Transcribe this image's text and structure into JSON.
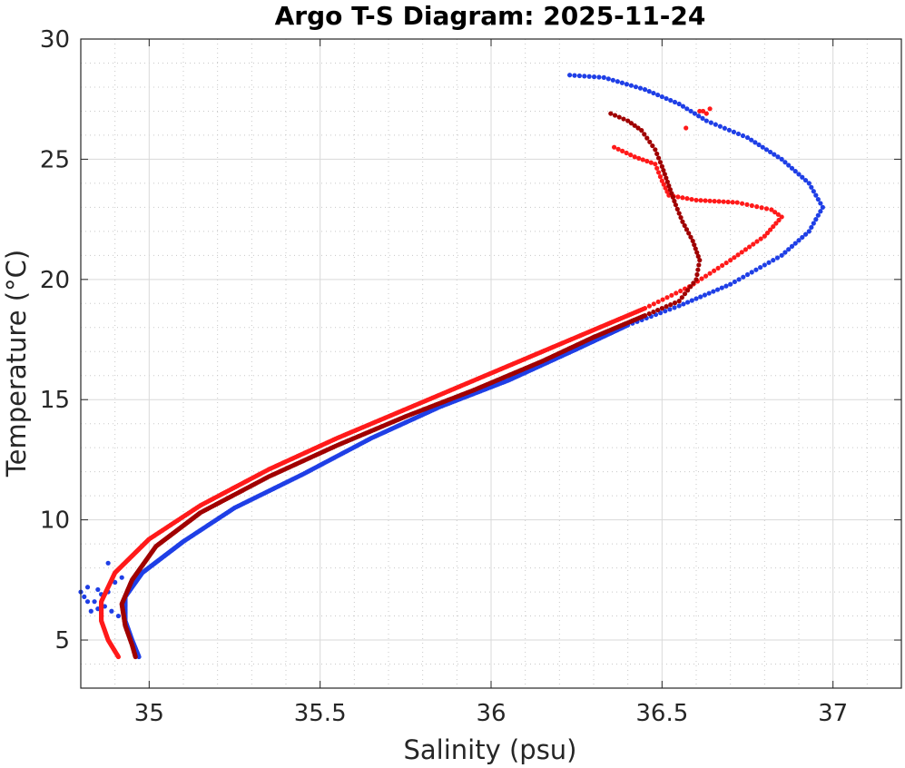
{
  "chart_data": {
    "type": "scatter",
    "title": "Argo T-S Diagram: 2025-11-24",
    "xlabel": "Salinity (psu)",
    "ylabel": "Temperature (°C)",
    "xlim": [
      34.8,
      37.2
    ],
    "ylim": [
      3,
      30
    ],
    "xticks": [
      35,
      35.5,
      36,
      36.5,
      37
    ],
    "xtick_labels": [
      "35",
      "35.5",
      "36",
      "36.5",
      "37"
    ],
    "yticks": [
      5,
      10,
      15,
      20,
      25,
      30
    ],
    "ytick_labels": [
      "5",
      "10",
      "15",
      "20",
      "25",
      "30"
    ],
    "x_minor_step": 0.1,
    "y_minor_step": 1,
    "grid": true,
    "minor_grid": true,
    "legend": "none",
    "series": [
      {
        "color": "#1f3fe6",
        "profile": [
          [
            36.23,
            28.5
          ],
          [
            36.33,
            28.4
          ],
          [
            36.45,
            27.9
          ],
          [
            36.55,
            27.3
          ],
          [
            36.63,
            26.6
          ],
          [
            36.75,
            25.9
          ],
          [
            36.85,
            25.0
          ],
          [
            36.93,
            24.0
          ],
          [
            36.97,
            23.0
          ],
          [
            36.93,
            22.0
          ],
          [
            36.85,
            21.0
          ],
          [
            36.7,
            19.8
          ],
          [
            36.55,
            18.9
          ],
          [
            36.4,
            18.1
          ],
          [
            36.25,
            17.1
          ],
          [
            36.05,
            15.8
          ],
          [
            35.85,
            14.7
          ],
          [
            35.65,
            13.4
          ],
          [
            35.45,
            11.9
          ],
          [
            35.25,
            10.5
          ],
          [
            35.1,
            9.1
          ],
          [
            34.98,
            7.8
          ],
          [
            34.93,
            6.8
          ],
          [
            34.93,
            5.8
          ],
          [
            34.95,
            5.0
          ],
          [
            34.97,
            4.3
          ]
        ],
        "scatter_points": [
          [
            34.8,
            7.0
          ],
          [
            34.82,
            7.2
          ],
          [
            34.85,
            7.1
          ],
          [
            34.88,
            7.0
          ],
          [
            34.81,
            6.8
          ],
          [
            34.84,
            6.6
          ],
          [
            34.87,
            6.4
          ],
          [
            34.89,
            6.2
          ],
          [
            34.86,
            6.9
          ],
          [
            34.9,
            7.4
          ],
          [
            34.92,
            7.6
          ],
          [
            34.88,
            8.2
          ],
          [
            34.83,
            6.2
          ],
          [
            34.91,
            6.0
          ],
          [
            34.82,
            6.6
          ],
          [
            34.85,
            6.3
          ]
        ]
      },
      {
        "color": "#ff1a1a",
        "profile": [
          [
            36.36,
            25.5
          ],
          [
            36.42,
            25.1
          ],
          [
            36.48,
            24.8
          ],
          [
            36.5,
            24.1
          ],
          [
            36.52,
            23.5
          ],
          [
            36.6,
            23.3
          ],
          [
            36.72,
            23.2
          ],
          [
            36.82,
            22.9
          ],
          [
            36.85,
            22.6
          ],
          [
            36.8,
            21.8
          ],
          [
            36.7,
            20.8
          ],
          [
            36.58,
            19.7
          ],
          [
            36.45,
            18.8
          ],
          [
            36.3,
            17.9
          ],
          [
            36.15,
            17.0
          ],
          [
            35.95,
            15.8
          ],
          [
            35.75,
            14.6
          ],
          [
            35.55,
            13.4
          ],
          [
            35.35,
            12.1
          ],
          [
            35.15,
            10.6
          ],
          [
            35.0,
            9.2
          ],
          [
            34.9,
            7.8
          ],
          [
            34.86,
            6.6
          ],
          [
            34.86,
            5.8
          ],
          [
            34.88,
            5.0
          ],
          [
            34.91,
            4.3
          ]
        ],
        "scatter_points": [
          [
            36.61,
            27.0
          ],
          [
            36.64,
            27.1
          ],
          [
            36.62,
            27.0
          ],
          [
            36.63,
            26.9
          ],
          [
            36.57,
            26.3
          ]
        ]
      },
      {
        "color": "#a00000",
        "profile": [
          [
            36.35,
            26.9
          ],
          [
            36.4,
            26.6
          ],
          [
            36.44,
            26.2
          ],
          [
            36.48,
            25.4
          ],
          [
            36.5,
            24.7
          ],
          [
            36.52,
            23.9
          ],
          [
            36.54,
            23.1
          ],
          [
            36.56,
            22.4
          ],
          [
            36.59,
            21.6
          ],
          [
            36.61,
            20.8
          ],
          [
            36.6,
            20.0
          ],
          [
            36.55,
            19.1
          ],
          [
            36.45,
            18.5
          ],
          [
            36.3,
            17.6
          ],
          [
            36.15,
            16.6
          ],
          [
            35.95,
            15.4
          ],
          [
            35.75,
            14.3
          ],
          [
            35.55,
            13.1
          ],
          [
            35.35,
            11.8
          ],
          [
            35.15,
            10.3
          ],
          [
            35.02,
            8.9
          ],
          [
            34.95,
            7.5
          ],
          [
            34.92,
            6.5
          ],
          [
            34.93,
            5.6
          ],
          [
            34.95,
            4.8
          ],
          [
            34.96,
            4.3
          ]
        ],
        "scatter_points": []
      }
    ]
  }
}
